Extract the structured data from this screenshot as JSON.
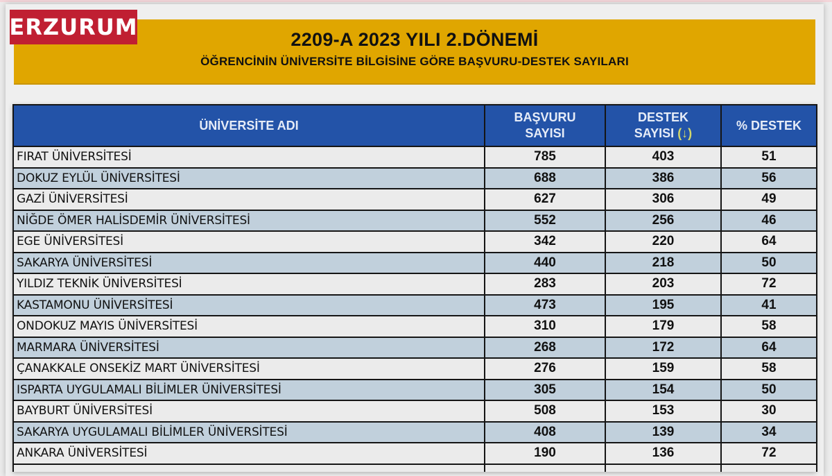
{
  "logo": {
    "text": "ERZURUM",
    "color": "#c01f32"
  },
  "banner": {
    "title": "2209-A 2023 YILI 2.DÖNEMİ",
    "subtitle": "ÖĞRENCİNİN ÜNİVERSİTE BİLGİSİNE GÖRE BAŞVURU-DESTEK SAYILARI",
    "background": "#e0a600"
  },
  "table": {
    "header_color": "#2353a8",
    "headers": {
      "name": "ÜNİVERSİTE ADI",
      "applications_line1": "BAŞVURU",
      "applications_line2": "SAYISI",
      "support_line1": "DESTEK",
      "support_line2": "SAYISI",
      "support_sort_indicator": "(↓)",
      "percent": "% DESTEK"
    },
    "rows": [
      {
        "name": "FIRAT ÜNİVERSİTESİ",
        "applications": "785",
        "support": "403",
        "percent": "51"
      },
      {
        "name": "DOKUZ EYLÜL ÜNİVERSİTESİ",
        "applications": "688",
        "support": "386",
        "percent": "56"
      },
      {
        "name": "GAZİ ÜNİVERSİTESİ",
        "applications": "627",
        "support": "306",
        "percent": "49"
      },
      {
        "name": "NİĞDE ÖMER HALİSDEMİR ÜNİVERSİTESİ",
        "applications": "552",
        "support": "256",
        "percent": "46"
      },
      {
        "name": "EGE ÜNİVERSİTESİ",
        "applications": "342",
        "support": "220",
        "percent": "64"
      },
      {
        "name": "SAKARYA ÜNİVERSİTESİ",
        "applications": "440",
        "support": "218",
        "percent": "50"
      },
      {
        "name": "YILDIZ TEKNİK ÜNİVERSİTESİ",
        "applications": "283",
        "support": "203",
        "percent": "72"
      },
      {
        "name": "KASTAMONU ÜNİVERSİTESİ",
        "applications": "473",
        "support": "195",
        "percent": "41"
      },
      {
        "name": "ONDOKUZ MAYIS ÜNİVERSİTESİ",
        "applications": "310",
        "support": "179",
        "percent": "58"
      },
      {
        "name": "MARMARA ÜNİVERSİTESİ",
        "applications": "268",
        "support": "172",
        "percent": "64"
      },
      {
        "name": "ÇANAKKALE ONSEKİZ MART ÜNİVERSİTESİ",
        "applications": "276",
        "support": "159",
        "percent": "58"
      },
      {
        "name": "ISPARTA UYGULAMALI BİLİMLER ÜNİVERSİTESİ",
        "applications": "305",
        "support": "154",
        "percent": "50"
      },
      {
        "name": "BAYBURT ÜNİVERSİTESİ",
        "applications": "508",
        "support": "153",
        "percent": "30"
      },
      {
        "name": "SAKARYA UYGULAMALI BİLİMLER ÜNİVERSİTESİ",
        "applications": "408",
        "support": "139",
        "percent": "34"
      },
      {
        "name": "ANKARA ÜNİVERSİTESİ",
        "applications": "190",
        "support": "136",
        "percent": "72"
      }
    ]
  }
}
